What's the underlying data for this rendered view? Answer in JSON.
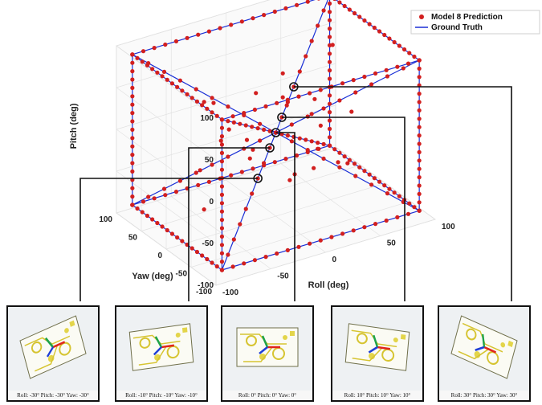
{
  "chart_data": {
    "type": "scatter",
    "subtype": "3d-scatter-with-lines",
    "xlabel": "Roll (deg)",
    "ylabel": "Yaw (deg)",
    "zlabel": "Pitch (deg)",
    "xlim": [
      -100,
      100
    ],
    "ylim": [
      -100,
      100
    ],
    "zlim": [
      -100,
      100
    ],
    "x_ticks": [
      "-100",
      "-50",
      "0",
      "50",
      "100"
    ],
    "y_ticks": [
      "-100",
      "-50",
      "0",
      "50",
      "100"
    ],
    "z_ticks": [
      "-100",
      "-50",
      "0",
      "50",
      "100"
    ],
    "grid": true,
    "legend_position": "top-right",
    "series": [
      {
        "name": "Model 8 Prediction",
        "marker": "dot",
        "color": "#d21f1f"
      },
      {
        "name": "Ground Truth",
        "marker": "line",
        "color": "#1a2fd6"
      }
    ],
    "ground_truth_segments": [
      [
        [
          -90,
          -90,
          -90
        ],
        [
          90,
          -90,
          -90
        ]
      ],
      [
        [
          90,
          -90,
          -90
        ],
        [
          90,
          90,
          -90
        ]
      ],
      [
        [
          90,
          90,
          -90
        ],
        [
          -90,
          90,
          -90
        ]
      ],
      [
        [
          -90,
          90,
          -90
        ],
        [
          -90,
          -90,
          -90
        ]
      ],
      [
        [
          -90,
          -90,
          90
        ],
        [
          90,
          -90,
          90
        ]
      ],
      [
        [
          90,
          -90,
          90
        ],
        [
          90,
          90,
          90
        ]
      ],
      [
        [
          90,
          90,
          90
        ],
        [
          -90,
          90,
          90
        ]
      ],
      [
        [
          -90,
          90,
          90
        ],
        [
          -90,
          -90,
          90
        ]
      ],
      [
        [
          -90,
          -90,
          -90
        ],
        [
          -90,
          -90,
          90
        ]
      ],
      [
        [
          90,
          -90,
          -90
        ],
        [
          90,
          -90,
          90
        ]
      ],
      [
        [
          90,
          90,
          -90
        ],
        [
          90,
          90,
          90
        ]
      ],
      [
        [
          -90,
          90,
          -90
        ],
        [
          -90,
          90,
          90
        ]
      ],
      [
        [
          -90,
          -90,
          -90
        ],
        [
          90,
          90,
          90
        ]
      ],
      [
        [
          90,
          -90,
          -90
        ],
        [
          -90,
          90,
          90
        ]
      ],
      [
        [
          -90,
          90,
          -90
        ],
        [
          90,
          -90,
          90
        ]
      ],
      [
        [
          90,
          90,
          -90
        ],
        [
          -90,
          -90,
          90
        ]
      ]
    ],
    "highlighted_points": [
      {
        "label": "Roll: -30°  Pitch: -30°  Yaw: -30°",
        "value": [
          -30,
          -30,
          -30
        ]
      },
      {
        "label": "Roll: -10°  Pitch: -10°  Yaw: -10°",
        "value": [
          -10,
          -10,
          -10
        ]
      },
      {
        "label": "Roll: 0°  Pitch: 0°  Yaw: 0°",
        "value": [
          0,
          0,
          0
        ]
      },
      {
        "label": "Roll: 10°  Pitch: 10°  Yaw: 10°",
        "value": [
          10,
          10,
          10
        ]
      },
      {
        "label": "Roll: 30°  Pitch: 30°  Yaw: 30°",
        "value": [
          30,
          30,
          30
        ]
      }
    ],
    "outliers": [
      [
        -30,
        -20,
        0
      ],
      [
        20,
        -40,
        -10
      ],
      [
        40,
        10,
        20
      ],
      [
        -10,
        30,
        -40
      ],
      [
        -50,
        0,
        10
      ],
      [
        30,
        -10,
        -50
      ],
      [
        0,
        40,
        30
      ],
      [
        -40,
        -30,
        20
      ],
      [
        50,
        20,
        -20
      ],
      [
        -20,
        50,
        -10
      ],
      [
        10,
        -50,
        40
      ],
      [
        60,
        -20,
        10
      ],
      [
        -60,
        20,
        -30
      ],
      [
        20,
        30,
        50
      ],
      [
        -10,
        -60,
        -20
      ],
      [
        35,
        55,
        -5
      ],
      [
        -45,
        45,
        35
      ],
      [
        15,
        5,
        -65
      ],
      [
        -5,
        -25,
        55
      ],
      [
        45,
        -45,
        -35
      ],
      [
        -70,
        -10,
        -60
      ],
      [
        70,
        40,
        60
      ],
      [
        -25,
        70,
        15
      ],
      [
        25,
        -70,
        -15
      ]
    ]
  }
}
